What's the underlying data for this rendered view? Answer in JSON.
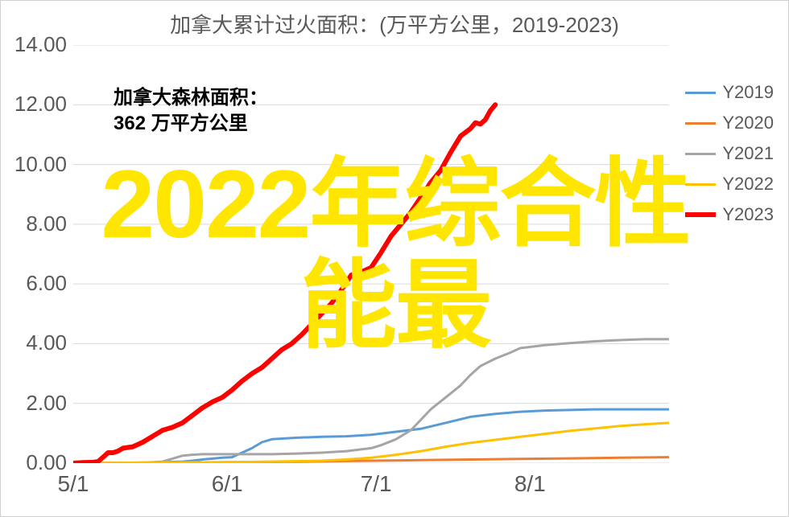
{
  "chart": {
    "type": "line",
    "title": "加拿大累计过火面积：(万平方公里，2019-2023)",
    "title_fontsize": 26,
    "title_color": "#595959",
    "background_color": "#ffffff",
    "plot_border_color": "#d9d9d9",
    "grid_color": "#d9d9d9",
    "axis_label_color": "#595959",
    "axis_label_fontsize": 26,
    "ylim": [
      0,
      14
    ],
    "ytick_step": 2,
    "y_ticks": [
      "0.00",
      "2.00",
      "4.00",
      "6.00",
      "8.00",
      "10.00",
      "12.00",
      "14.00"
    ],
    "x_ticks": [
      "5/1",
      "6/1",
      "7/1",
      "8/1"
    ],
    "x_tick_positions": [
      0,
      31,
      61,
      92
    ],
    "x_range": [
      0,
      120
    ],
    "annotation": {
      "line1": "加拿大森林面积：",
      "line2": "362 万平方公里",
      "fontsize": 24,
      "color": "#000000",
      "fontweight": "bold"
    },
    "overlay": {
      "text_line1": "2022年综合性",
      "text_line2": "能最",
      "color": "#ffe600",
      "fontsize": 120,
      "fontweight": "bold"
    },
    "legend": {
      "position": "right",
      "fontsize": 22,
      "items": [
        {
          "label": "Y2019",
          "color": "#5b9bd5",
          "width": 3
        },
        {
          "label": "Y2020",
          "color": "#ed7d31",
          "width": 3
        },
        {
          "label": "Y2021",
          "color": "#a5a5a5",
          "width": 3
        },
        {
          "label": "Y2022",
          "color": "#ffc000",
          "width": 3
        },
        {
          "label": "Y2023",
          "color": "#ff0000",
          "width": 6
        }
      ]
    },
    "series": [
      {
        "name": "Y2019",
        "color": "#5b9bd5",
        "width": 3,
        "x": [
          0,
          5,
          10,
          15,
          18,
          20,
          22,
          24,
          26,
          28,
          30,
          32,
          34,
          36,
          38,
          40,
          45,
          50,
          55,
          60,
          65,
          70,
          75,
          80,
          85,
          90,
          95,
          100,
          105,
          110,
          115,
          120
        ],
        "y": [
          0,
          0,
          0.01,
          0.02,
          0.03,
          0.04,
          0.05,
          0.08,
          0.12,
          0.15,
          0.18,
          0.2,
          0.35,
          0.5,
          0.7,
          0.8,
          0.85,
          0.88,
          0.9,
          0.95,
          1.05,
          1.15,
          1.35,
          1.55,
          1.65,
          1.72,
          1.76,
          1.78,
          1.8,
          1.8,
          1.8,
          1.8
        ]
      },
      {
        "name": "Y2020",
        "color": "#ed7d31",
        "width": 3,
        "x": [
          0,
          10,
          20,
          30,
          40,
          50,
          60,
          70,
          80,
          90,
          100,
          110,
          120
        ],
        "y": [
          0,
          0.01,
          0.02,
          0.03,
          0.04,
          0.06,
          0.08,
          0.1,
          0.12,
          0.14,
          0.16,
          0.18,
          0.2
        ]
      },
      {
        "name": "Y2021",
        "color": "#a5a5a5",
        "width": 3,
        "x": [
          0,
          5,
          10,
          15,
          18,
          20,
          22,
          24,
          26,
          28,
          30,
          35,
          40,
          45,
          50,
          55,
          60,
          62,
          65,
          68,
          70,
          72,
          75,
          78,
          80,
          82,
          85,
          88,
          90,
          95,
          100,
          105,
          110,
          115,
          120
        ],
        "y": [
          0,
          0,
          0.01,
          0.02,
          0.05,
          0.15,
          0.25,
          0.28,
          0.3,
          0.3,
          0.3,
          0.3,
          0.3,
          0.32,
          0.35,
          0.4,
          0.5,
          0.6,
          0.8,
          1.1,
          1.45,
          1.8,
          2.2,
          2.6,
          2.95,
          3.25,
          3.5,
          3.7,
          3.85,
          3.95,
          4.02,
          4.08,
          4.12,
          4.15,
          4.15
        ]
      },
      {
        "name": "Y2022",
        "color": "#ffc000",
        "width": 3,
        "x": [
          0,
          10,
          20,
          30,
          40,
          50,
          55,
          60,
          65,
          70,
          75,
          80,
          85,
          90,
          95,
          100,
          105,
          110,
          115,
          120
        ],
        "y": [
          0,
          0.01,
          0.02,
          0.03,
          0.05,
          0.08,
          0.12,
          0.18,
          0.28,
          0.4,
          0.55,
          0.68,
          0.78,
          0.88,
          0.98,
          1.08,
          1.16,
          1.24,
          1.3,
          1.35
        ]
      },
      {
        "name": "Y2023",
        "color": "#ff0000",
        "width": 6,
        "x": [
          0,
          2,
          4,
          5,
          6,
          7,
          8,
          9,
          10,
          12,
          14,
          16,
          18,
          20,
          22,
          24,
          26,
          28,
          30,
          32,
          34,
          36,
          38,
          40,
          42,
          44,
          46,
          48,
          50,
          52,
          54,
          56,
          58,
          60,
          62,
          64,
          66,
          68,
          70,
          72,
          74,
          76,
          78,
          80,
          81,
          82,
          83,
          84,
          85
        ],
        "y": [
          0,
          0.02,
          0.03,
          0.05,
          0.2,
          0.35,
          0.35,
          0.4,
          0.5,
          0.55,
          0.7,
          0.9,
          1.1,
          1.2,
          1.35,
          1.6,
          1.85,
          2.05,
          2.2,
          2.45,
          2.75,
          3.0,
          3.2,
          3.5,
          3.8,
          4.0,
          4.3,
          4.65,
          5.0,
          5.35,
          5.8,
          6.3,
          6.4,
          6.55,
          7.05,
          7.6,
          8.0,
          8.4,
          8.9,
          9.4,
          9.8,
          10.4,
          10.95,
          11.2,
          11.4,
          11.35,
          11.5,
          11.8,
          12.0
        ]
      }
    ]
  }
}
